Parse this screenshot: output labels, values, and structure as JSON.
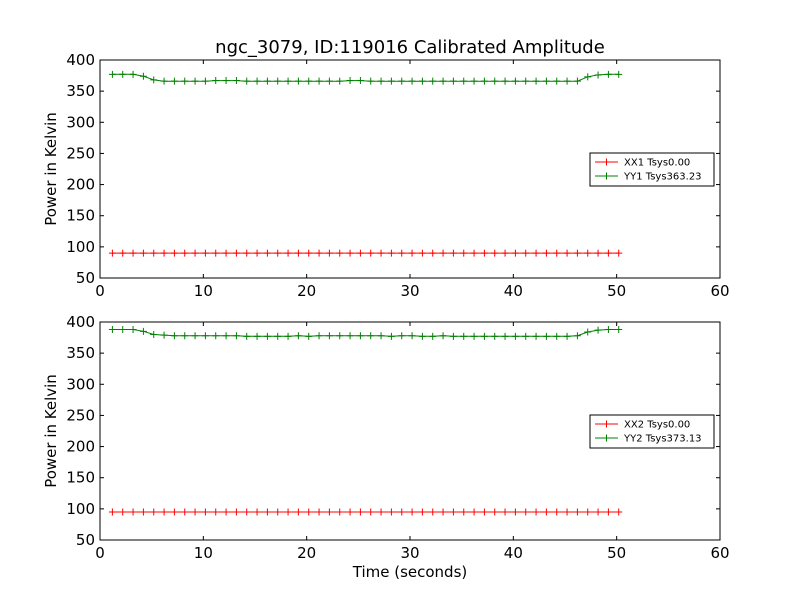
{
  "figure": {
    "title": "ngc_3079, ID:119016 Calibrated Amplitude"
  },
  "chart_data": [
    {
      "type": "line",
      "title": "ngc_3079, ID:119016 Calibrated Amplitude",
      "xlabel": "",
      "ylabel": "Power in Kelvin",
      "xlim": [
        0,
        60
      ],
      "ylim": [
        50,
        400
      ],
      "xticks": [
        0,
        10,
        20,
        30,
        40,
        50,
        60
      ],
      "yticks": [
        50,
        100,
        150,
        200,
        250,
        300,
        350,
        400
      ],
      "legend_position": "right",
      "series": [
        {
          "name": "XX1 Tsys0.00",
          "color": "#ff0000",
          "x": [
            1.2,
            2.2,
            3.2,
            4.2,
            5.2,
            6.2,
            7.2,
            8.2,
            9.2,
            10.2,
            11.2,
            12.2,
            13.2,
            14.2,
            15.2,
            16.2,
            17.2,
            18.2,
            19.2,
            20.2,
            21.2,
            22.2,
            23.2,
            24.2,
            25.2,
            26.2,
            27.2,
            28.2,
            29.2,
            30.2,
            31.2,
            32.2,
            33.2,
            34.2,
            35.2,
            36.2,
            37.2,
            38.2,
            39.2,
            40.2,
            41.2,
            42.2,
            43.2,
            44.2,
            45.2,
            46.2,
            47.2,
            48.2,
            49.2,
            50.2
          ],
          "y": [
            90,
            90,
            90,
            90,
            90,
            90,
            90,
            90,
            90,
            90,
            90,
            90,
            90,
            90,
            90,
            90,
            90,
            90,
            90,
            90,
            90,
            90,
            90,
            90,
            90,
            90,
            90,
            90,
            90,
            90,
            90,
            90,
            90,
            90,
            90,
            90,
            90,
            90,
            90,
            90,
            90,
            90,
            90,
            90,
            90,
            90,
            90,
            90,
            90,
            90
          ]
        },
        {
          "name": "YY1 Tsys363.23",
          "color": "#008000",
          "x": [
            1.2,
            2.2,
            3.2,
            4.2,
            5.2,
            6.2,
            7.2,
            8.2,
            9.2,
            10.2,
            11.2,
            12.2,
            13.2,
            14.2,
            15.2,
            16.2,
            17.2,
            18.2,
            19.2,
            20.2,
            21.2,
            22.2,
            23.2,
            24.2,
            25.2,
            26.2,
            27.2,
            28.2,
            29.2,
            30.2,
            31.2,
            32.2,
            33.2,
            34.2,
            35.2,
            36.2,
            37.2,
            38.2,
            39.2,
            40.2,
            41.2,
            42.2,
            43.2,
            44.2,
            45.2,
            46.2,
            47.2,
            48.2,
            49.2,
            50.2
          ],
          "y": [
            377,
            377,
            377,
            374,
            368,
            366,
            366,
            366,
            366,
            366,
            367,
            367,
            367,
            366,
            366,
            366,
            366,
            366,
            366,
            366,
            366,
            366,
            366,
            367,
            367,
            366,
            366,
            366,
            366,
            366,
            366,
            366,
            366,
            366,
            366,
            366,
            366,
            366,
            366,
            366,
            366,
            366,
            366,
            366,
            366,
            366,
            373,
            376,
            377,
            377
          ]
        }
      ]
    },
    {
      "type": "line",
      "title": "",
      "xlabel": "Time (seconds)",
      "ylabel": "Power in Kelvin",
      "xlim": [
        0,
        60
      ],
      "ylim": [
        50,
        400
      ],
      "xticks": [
        0,
        10,
        20,
        30,
        40,
        50,
        60
      ],
      "yticks": [
        50,
        100,
        150,
        200,
        250,
        300,
        350,
        400
      ],
      "legend_position": "right",
      "series": [
        {
          "name": "XX2 Tsys0.00",
          "color": "#ff0000",
          "x": [
            1.2,
            2.2,
            3.2,
            4.2,
            5.2,
            6.2,
            7.2,
            8.2,
            9.2,
            10.2,
            11.2,
            12.2,
            13.2,
            14.2,
            15.2,
            16.2,
            17.2,
            18.2,
            19.2,
            20.2,
            21.2,
            22.2,
            23.2,
            24.2,
            25.2,
            26.2,
            27.2,
            28.2,
            29.2,
            30.2,
            31.2,
            32.2,
            33.2,
            34.2,
            35.2,
            36.2,
            37.2,
            38.2,
            39.2,
            40.2,
            41.2,
            42.2,
            43.2,
            44.2,
            45.2,
            46.2,
            47.2,
            48.2,
            49.2,
            50.2
          ],
          "y": [
            95,
            95,
            95,
            95,
            95,
            95,
            95,
            95,
            95,
            95,
            95,
            95,
            95,
            95,
            95,
            95,
            95,
            95,
            95,
            95,
            95,
            95,
            95,
            95,
            95,
            95,
            95,
            95,
            95,
            95,
            95,
            95,
            95,
            95,
            95,
            95,
            95,
            95,
            95,
            95,
            95,
            95,
            95,
            95,
            95,
            95,
            95,
            95,
            95,
            95
          ]
        },
        {
          "name": "YY2 Tsys373.13",
          "color": "#008000",
          "x": [
            1.2,
            2.2,
            3.2,
            4.2,
            5.2,
            6.2,
            7.2,
            8.2,
            9.2,
            10.2,
            11.2,
            12.2,
            13.2,
            14.2,
            15.2,
            16.2,
            17.2,
            18.2,
            19.2,
            20.2,
            21.2,
            22.2,
            23.2,
            24.2,
            25.2,
            26.2,
            27.2,
            28.2,
            29.2,
            30.2,
            31.2,
            32.2,
            33.2,
            34.2,
            35.2,
            36.2,
            37.2,
            38.2,
            39.2,
            40.2,
            41.2,
            42.2,
            43.2,
            44.2,
            45.2,
            46.2,
            47.2,
            48.2,
            49.2,
            50.2
          ],
          "y": [
            388,
            388,
            388,
            385,
            380,
            379,
            378,
            378,
            378,
            378,
            378,
            378,
            378,
            377,
            377,
            377,
            377,
            377,
            378,
            377,
            378,
            378,
            378,
            378,
            378,
            378,
            378,
            377,
            378,
            378,
            377,
            377,
            378,
            377,
            377,
            377,
            377,
            377,
            377,
            377,
            377,
            377,
            377,
            377,
            377,
            378,
            384,
            387,
            388,
            388
          ]
        }
      ]
    }
  ]
}
